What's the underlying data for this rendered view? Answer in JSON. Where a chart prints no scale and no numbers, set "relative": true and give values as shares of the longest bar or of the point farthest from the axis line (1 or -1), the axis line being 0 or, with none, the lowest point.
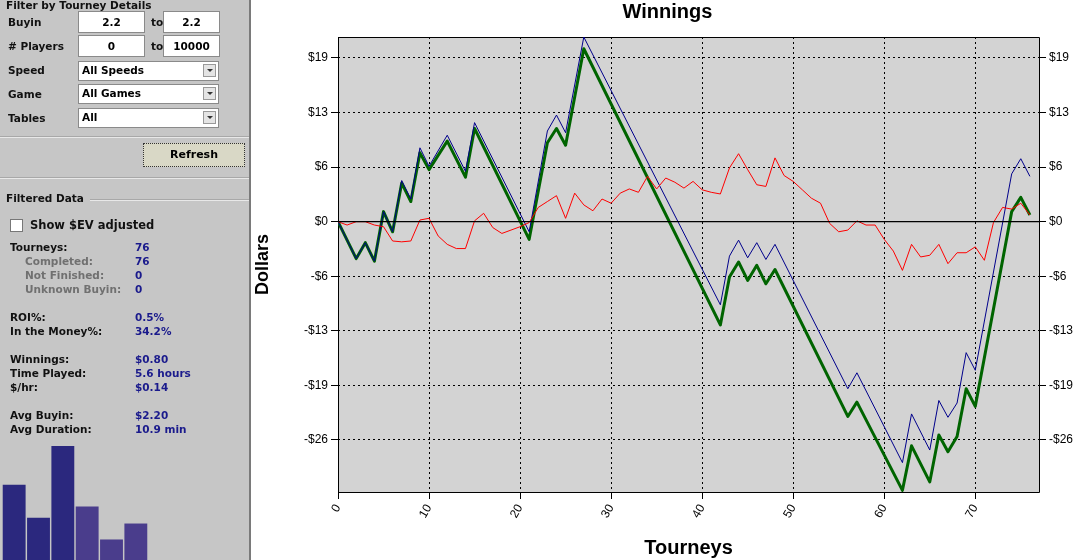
{
  "chart_data": [
    {
      "type": "other",
      "annotations": [
        "Filter by Tourney Details",
        "Buyin",
        "2.2",
        "to",
        "2.2",
        "# Players",
        "0",
        "to",
        "10000",
        "Speed",
        "All Speeds",
        "Game",
        "All Games",
        "Tables",
        "All",
        "Refresh",
        "Filtered Data",
        "Show $EV adjusted",
        "Tourneys:",
        "76",
        "Completed:",
        "76",
        "Not Finished:",
        "0",
        "Unknown Buyin:",
        "0",
        "ROI%:",
        "0.5%",
        "In the Money%:",
        "34.2%",
        "Winnings:",
        "$0.80",
        "Time Played:",
        "5.6 hours",
        "$/hr:",
        "$0.14",
        "Avg Buyin:",
        "$2.20",
        "Avg Duration:",
        "10.9 min"
      ]
    },
    {
      "type": "bar",
      "relative": true,
      "categories": [
        null,
        null,
        null,
        null,
        null,
        null
      ],
      "values": [
        0.66,
        0.37,
        1,
        0.47,
        0.18,
        0.32
      ],
      "colors": [
        "#2b287e",
        "#2b287e",
        "#2b287e",
        "#4a3d8c",
        "#4a3d8c",
        "#4a3d8c"
      ]
    },
    {
      "type": "line",
      "title": "Winnings",
      "xlabel": "Tourneys",
      "ylabel": "Dollars",
      "xlim": [
        0,
        77
      ],
      "xticks": [
        0,
        10,
        20,
        30,
        40,
        50,
        60,
        70
      ],
      "ylim": [
        -32.2,
        22
      ],
      "yticks": [
        {
          "value": -26,
          "label": "-$26"
        },
        {
          "value": -19.5,
          "label": "-$19"
        },
        {
          "value": -13,
          "label": "-$13"
        },
        {
          "value": -6.5,
          "label": "-$6"
        },
        {
          "value": 0,
          "label": "$0"
        },
        {
          "value": 6.5,
          "label": "$6"
        },
        {
          "value": 13,
          "label": "$13"
        },
        {
          "value": 19.5,
          "label": "$19"
        }
      ],
      "y2lim": [
        -32.2,
        22
      ],
      "y2ticks": [
        {
          "value": -26,
          "label": "-$26"
        },
        {
          "value": -19.5,
          "label": "-$19"
        },
        {
          "value": -13,
          "label": "-$13"
        },
        {
          "value": -6.5,
          "label": "-$6"
        },
        {
          "value": 0,
          "label": "$0"
        },
        {
          "value": 6.5,
          "label": "$6"
        },
        {
          "value": 13,
          "label": "$13"
        },
        {
          "value": 19.5,
          "label": "$19"
        }
      ],
      "grid": true,
      "legend": false,
      "marker": "none",
      "line_style": "solid",
      "ref_lines": [
        {
          "axis": "y",
          "value": 0,
          "color": "#000000"
        }
      ],
      "series": [
        {
          "color": "#ff0000",
          "x": [
            0,
            1,
            2,
            3,
            4,
            5,
            6,
            7,
            8,
            9,
            10,
            11,
            12,
            13,
            14,
            15,
            16,
            17,
            18,
            19,
            20,
            21,
            22,
            23,
            24,
            25,
            26,
            27,
            28,
            29,
            30,
            31,
            32,
            33,
            34,
            35,
            36,
            37,
            38,
            39,
            40,
            41,
            42,
            43,
            44,
            45,
            46,
            47,
            48,
            49,
            50,
            51,
            52,
            53,
            54,
            55,
            56,
            57,
            58,
            59,
            60,
            61,
            62,
            63,
            64,
            65,
            66,
            67,
            68,
            69,
            70,
            71,
            72,
            73,
            74,
            75,
            76
          ],
          "values": [
            0,
            -0.4,
            0,
            0,
            -0.4,
            -0.6,
            -2.3,
            -2.4,
            -2.3,
            0.2,
            0.4,
            -1.7,
            -2.7,
            -3.2,
            -3.2,
            0.1,
            1.0,
            -0.7,
            -1.4,
            -1.0,
            -0.6,
            -0.1,
            1.7,
            2.4,
            3.1,
            0.4,
            3.4,
            2.0,
            1.3,
            2.7,
            2.2,
            3.4,
            3.9,
            3.5,
            5.4,
            3.9,
            5.2,
            4.7,
            4.0,
            4.8,
            3.8,
            3.5,
            3.3,
            6.4,
            8.1,
            6.2,
            4.4,
            4.2,
            7.6,
            5.5,
            4.8,
            3.8,
            2.8,
            2.2,
            -0.2,
            -1.2,
            -1.0,
            0.1,
            -0.4,
            -0.4,
            -2.1,
            -3.5,
            -5.8,
            -2.7,
            -4.2,
            -4.0,
            -2.7,
            -5.0,
            -3.7,
            -3.7,
            -3.0,
            -4.6,
            -0.1,
            1.7,
            1.5,
            2.2,
            0.8
          ]
        },
        {
          "color": "#00008b",
          "x": [
            0,
            2,
            3,
            4,
            5,
            6,
            7,
            8,
            9,
            10,
            12,
            14,
            15,
            21,
            23,
            24,
            25,
            27,
            42,
            43,
            44,
            45,
            46,
            47,
            48,
            56,
            57,
            62,
            63,
            65,
            66,
            67,
            68,
            69,
            70,
            74,
            75,
            76
          ],
          "values": [
            0,
            -4.4,
            -2.5,
            -4.7,
            1.2,
            -1.2,
            4.9,
            2.7,
            8.8,
            6.6,
            10.3,
            6.0,
            11.8,
            -1.2,
            10.8,
            12.7,
            10.6,
            22.0,
            -9.9,
            -4.1,
            -2.2,
            -4.3,
            -2.5,
            -4.5,
            -2.7,
            -19.9,
            -18.0,
            -28.7,
            -22.9,
            -27.2,
            -21.3,
            -23.3,
            -21.6,
            -15.6,
            -17.7,
            5.7,
            7.5,
            5.4
          ]
        },
        {
          "color": "#006400",
          "x": [
            0,
            2,
            3,
            4,
            5,
            6,
            7,
            8,
            9,
            10,
            12,
            14,
            15,
            21,
            23,
            24,
            25,
            27,
            42,
            43,
            44,
            45,
            46,
            47,
            48,
            56,
            57,
            62,
            63,
            65,
            66,
            67,
            68,
            69,
            70,
            74,
            75,
            76
          ],
          "values": [
            0,
            -4.4,
            -2.5,
            -4.7,
            1.2,
            -1.2,
            4.6,
            2.4,
            8.2,
            6.2,
            9.6,
            5.3,
            11.1,
            -2.1,
            9.4,
            11.1,
            9.1,
            20.6,
            -12.3,
            -6.6,
            -4.8,
            -7.0,
            -5.2,
            -7.4,
            -5.7,
            -23.2,
            -21.5,
            -32.0,
            -26.7,
            -31.0,
            -25.4,
            -27.4,
            -25.6,
            -19.9,
            -22.0,
            1.2,
            2.9,
            0.8
          ]
        }
      ]
    }
  ]
}
